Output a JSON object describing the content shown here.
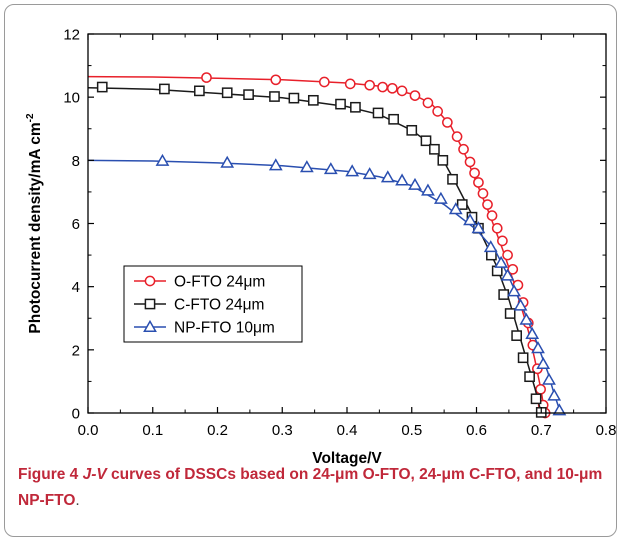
{
  "caption": {
    "label": "Figure 4",
    "italic": "J-V",
    "text": " curves of DSSCs based on 24-μm O-FTO, 24-μm C-FTO, and 10-μm NP-FTO",
    "end": "."
  },
  "chart_data": {
    "type": "line",
    "xlabel": "Voltage/V",
    "ylabel": "Photocurrent density/mA cm",
    "ylabel_sup": "-2",
    "xlim": [
      0.0,
      0.8
    ],
    "ylim": [
      0,
      12
    ],
    "xticks": [
      "0.0",
      "0.1",
      "0.2",
      "0.3",
      "0.4",
      "0.5",
      "0.6",
      "0.7",
      "0.8"
    ],
    "yticks": [
      "0",
      "2",
      "4",
      "6",
      "8",
      "10",
      "12"
    ],
    "legend_position": "middle-left",
    "series": [
      {
        "name": "O-FTO 24μm",
        "color": "#e8202a",
        "marker": "circle",
        "line": [
          [
            0.0,
            10.65
          ],
          [
            0.1,
            10.64
          ],
          [
            0.2,
            10.6
          ],
          [
            0.3,
            10.55
          ],
          [
            0.4,
            10.45
          ],
          [
            0.45,
            10.35
          ],
          [
            0.5,
            10.1
          ],
          [
            0.53,
            9.8
          ],
          [
            0.56,
            9.1
          ],
          [
            0.58,
            8.3
          ],
          [
            0.6,
            7.3
          ],
          [
            0.62,
            6.3
          ],
          [
            0.64,
            5.2
          ],
          [
            0.66,
            4.0
          ],
          [
            0.68,
            2.6
          ],
          [
            0.69,
            1.7
          ],
          [
            0.7,
            0.7
          ],
          [
            0.705,
            0.0
          ]
        ],
        "points": [
          [
            0.183,
            10.62
          ],
          [
            0.29,
            10.55
          ],
          [
            0.365,
            10.48
          ],
          [
            0.405,
            10.42
          ],
          [
            0.435,
            10.38
          ],
          [
            0.455,
            10.32
          ],
          [
            0.47,
            10.28
          ],
          [
            0.485,
            10.2
          ],
          [
            0.505,
            10.05
          ],
          [
            0.525,
            9.82
          ],
          [
            0.54,
            9.55
          ],
          [
            0.555,
            9.2
          ],
          [
            0.57,
            8.75
          ],
          [
            0.58,
            8.35
          ],
          [
            0.59,
            7.95
          ],
          [
            0.597,
            7.6
          ],
          [
            0.603,
            7.3
          ],
          [
            0.61,
            6.95
          ],
          [
            0.617,
            6.6
          ],
          [
            0.624,
            6.25
          ],
          [
            0.632,
            5.85
          ],
          [
            0.64,
            5.45
          ],
          [
            0.648,
            5.0
          ],
          [
            0.656,
            4.55
          ],
          [
            0.664,
            4.05
          ],
          [
            0.672,
            3.5
          ],
          [
            0.68,
            2.85
          ],
          [
            0.687,
            2.15
          ],
          [
            0.694,
            1.4
          ],
          [
            0.699,
            0.75
          ],
          [
            0.703,
            0.25
          ],
          [
            0.706,
            0.0
          ]
        ]
      },
      {
        "name": "C-FTO 24μm",
        "color": "#1a1a1a",
        "marker": "square",
        "line": [
          [
            0.0,
            10.3
          ],
          [
            0.1,
            10.25
          ],
          [
            0.2,
            10.12
          ],
          [
            0.3,
            9.98
          ],
          [
            0.4,
            9.7
          ],
          [
            0.45,
            9.45
          ],
          [
            0.5,
            8.95
          ],
          [
            0.53,
            8.5
          ],
          [
            0.55,
            7.95
          ],
          [
            0.57,
            7.2
          ],
          [
            0.59,
            6.4
          ],
          [
            0.61,
            5.55
          ],
          [
            0.63,
            4.7
          ],
          [
            0.65,
            3.6
          ],
          [
            0.67,
            2.2
          ],
          [
            0.69,
            0.8
          ],
          [
            0.7,
            0.0
          ]
        ],
        "points": [
          [
            0.022,
            10.32
          ],
          [
            0.118,
            10.26
          ],
          [
            0.172,
            10.2
          ],
          [
            0.215,
            10.14
          ],
          [
            0.248,
            10.08
          ],
          [
            0.288,
            10.02
          ],
          [
            0.318,
            9.97
          ],
          [
            0.348,
            9.9
          ],
          [
            0.39,
            9.78
          ],
          [
            0.413,
            9.68
          ],
          [
            0.448,
            9.5
          ],
          [
            0.472,
            9.3
          ],
          [
            0.5,
            8.95
          ],
          [
            0.522,
            8.62
          ],
          [
            0.535,
            8.35
          ],
          [
            0.548,
            8.0
          ],
          [
            0.563,
            7.4
          ],
          [
            0.578,
            6.6
          ],
          [
            0.593,
            6.2
          ],
          [
            0.603,
            5.85
          ],
          [
            0.623,
            5.0
          ],
          [
            0.632,
            4.5
          ],
          [
            0.642,
            3.75
          ],
          [
            0.652,
            3.15
          ],
          [
            0.662,
            2.45
          ],
          [
            0.672,
            1.75
          ],
          [
            0.682,
            1.15
          ],
          [
            0.692,
            0.45
          ],
          [
            0.7,
            0.02
          ]
        ]
      },
      {
        "name": "NP-FTO 10μm",
        "color": "#2a4fb0",
        "marker": "triangle",
        "line": [
          [
            0.0,
            8.0
          ],
          [
            0.1,
            7.98
          ],
          [
            0.2,
            7.92
          ],
          [
            0.3,
            7.83
          ],
          [
            0.4,
            7.65
          ],
          [
            0.45,
            7.48
          ],
          [
            0.5,
            7.2
          ],
          [
            0.55,
            6.6
          ],
          [
            0.6,
            5.8
          ],
          [
            0.63,
            5.1
          ],
          [
            0.65,
            4.3
          ],
          [
            0.67,
            3.4
          ],
          [
            0.69,
            2.4
          ],
          [
            0.71,
            1.3
          ],
          [
            0.72,
            0.6
          ],
          [
            0.73,
            0.0
          ]
        ],
        "points": [
          [
            0.115,
            7.98
          ],
          [
            0.215,
            7.92
          ],
          [
            0.29,
            7.84
          ],
          [
            0.338,
            7.78
          ],
          [
            0.375,
            7.72
          ],
          [
            0.408,
            7.65
          ],
          [
            0.435,
            7.56
          ],
          [
            0.463,
            7.46
          ],
          [
            0.485,
            7.36
          ],
          [
            0.505,
            7.22
          ],
          [
            0.525,
            7.04
          ],
          [
            0.545,
            6.78
          ],
          [
            0.568,
            6.45
          ],
          [
            0.59,
            6.1
          ],
          [
            0.603,
            5.85
          ],
          [
            0.622,
            5.25
          ],
          [
            0.638,
            4.75
          ],
          [
            0.648,
            4.35
          ],
          [
            0.658,
            3.85
          ],
          [
            0.668,
            3.4
          ],
          [
            0.677,
            2.95
          ],
          [
            0.686,
            2.5
          ],
          [
            0.695,
            2.05
          ],
          [
            0.703,
            1.55
          ],
          [
            0.712,
            1.05
          ],
          [
            0.72,
            0.55
          ],
          [
            0.728,
            0.08
          ]
        ]
      }
    ]
  }
}
